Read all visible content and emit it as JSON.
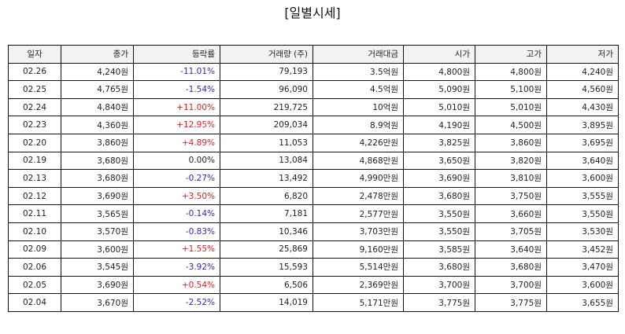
{
  "title": "[일별시세]",
  "columns": [
    "일자",
    "종가",
    "등락률",
    "거래량 (주)",
    "거래대금",
    "시가",
    "고가",
    "저가"
  ],
  "rows": [
    {
      "date": "02.26",
      "close": "4,240원",
      "change": "-11.01%",
      "dir": "down",
      "volume": "79,193",
      "amount": "3.5억원",
      "open": "4,800원",
      "high": "4,800원",
      "low": "4,240원"
    },
    {
      "date": "02.25",
      "close": "4,765원",
      "change": "-1.54%",
      "dir": "down",
      "volume": "96,090",
      "amount": "4.5억원",
      "open": "5,090원",
      "high": "5,100원",
      "low": "4,560원"
    },
    {
      "date": "02.24",
      "close": "4,840원",
      "change": "+11.00%",
      "dir": "up",
      "volume": "219,725",
      "amount": "10억원",
      "open": "5,010원",
      "high": "5,010원",
      "low": "4,430원"
    },
    {
      "date": "02.23",
      "close": "4,360원",
      "change": "+12.95%",
      "dir": "up",
      "volume": "209,034",
      "amount": "8.9억원",
      "open": "4,190원",
      "high": "4,500원",
      "low": "3,895원"
    },
    {
      "date": "02.20",
      "close": "3,860원",
      "change": "+4.89%",
      "dir": "up",
      "volume": "11,053",
      "amount": "4,226만원",
      "open": "3,825원",
      "high": "3,860원",
      "low": "3,695원"
    },
    {
      "date": "02.19",
      "close": "3,680원",
      "change": "0.00%",
      "dir": "flat",
      "volume": "13,084",
      "amount": "4,868만원",
      "open": "3,650원",
      "high": "3,820원",
      "low": "3,640원"
    },
    {
      "date": "02.13",
      "close": "3,680원",
      "change": "-0.27%",
      "dir": "down",
      "volume": "13,492",
      "amount": "4,990만원",
      "open": "3,690원",
      "high": "3,810원",
      "low": "3,600원"
    },
    {
      "date": "02.12",
      "close": "3,690원",
      "change": "+3.50%",
      "dir": "up",
      "volume": "6,820",
      "amount": "2,478만원",
      "open": "3,680원",
      "high": "3,750원",
      "low": "3,555원"
    },
    {
      "date": "02.11",
      "close": "3,565원",
      "change": "-0.14%",
      "dir": "down",
      "volume": "7,181",
      "amount": "2,577만원",
      "open": "3,550원",
      "high": "3,660원",
      "low": "3,550원"
    },
    {
      "date": "02.10",
      "close": "3,570원",
      "change": "-0.83%",
      "dir": "down",
      "volume": "10,346",
      "amount": "3,703만원",
      "open": "3,550원",
      "high": "3,705원",
      "low": "3,530원"
    },
    {
      "date": "02.09",
      "close": "3,600원",
      "change": "+1.55%",
      "dir": "up",
      "volume": "25,869",
      "amount": "9,160만원",
      "open": "3,585원",
      "high": "3,640원",
      "low": "3,452원"
    },
    {
      "date": "02.06",
      "close": "3,545원",
      "change": "-3.92%",
      "dir": "down",
      "volume": "15,593",
      "amount": "5,514만원",
      "open": "3,680원",
      "high": "3,680원",
      "low": "3,470원"
    },
    {
      "date": "02.05",
      "close": "3,690원",
      "change": "+0.54%",
      "dir": "up",
      "volume": "6,506",
      "amount": "2,369만원",
      "open": "3,700원",
      "high": "3,700원",
      "low": "3,600원"
    },
    {
      "date": "02.04",
      "close": "3,670원",
      "change": "-2.52%",
      "dir": "down",
      "volume": "14,019",
      "amount": "5,171만원",
      "open": "3,775원",
      "high": "3,775원",
      "low": "3,655원"
    }
  ],
  "colors": {
    "up": "#d62222",
    "down": "#2b2bb0",
    "header_bg": "#f2f2f2",
    "border": "#111111"
  }
}
